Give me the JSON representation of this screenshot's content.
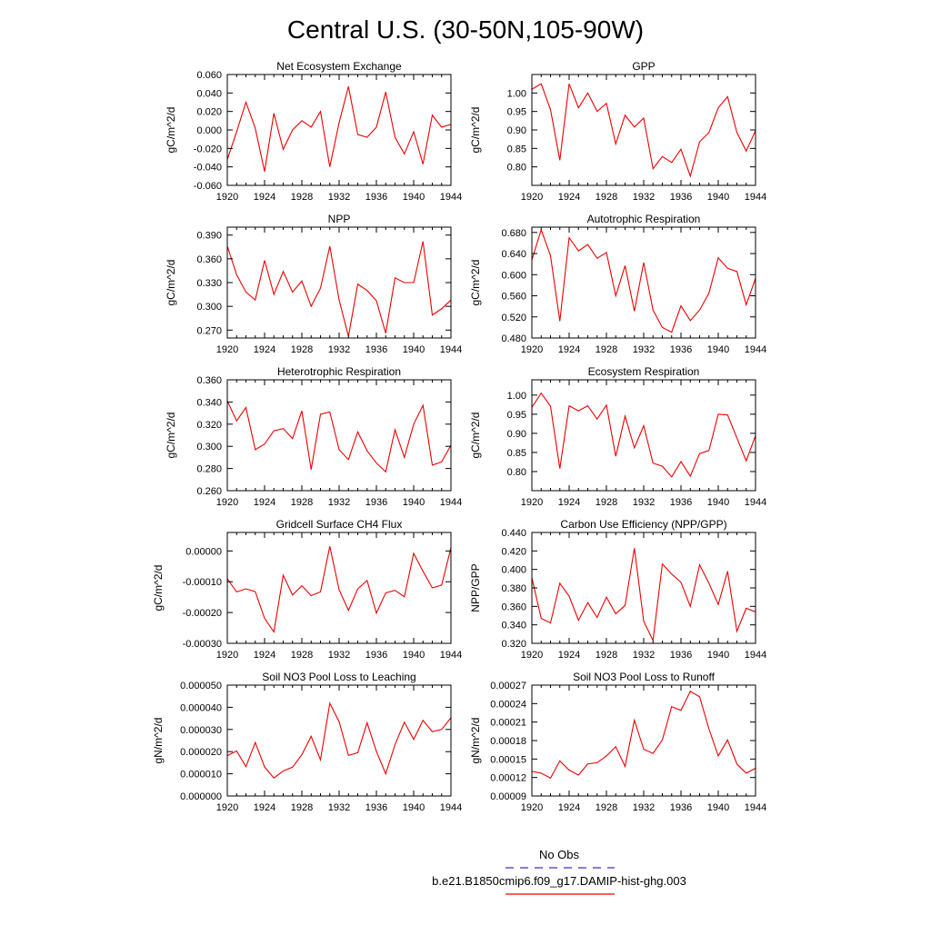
{
  "figure": {
    "title": "Central U.S. (30-50N,105-90W)",
    "legend": [
      {
        "label": "No Obs",
        "color": "#3333cc",
        "style": "dashed"
      },
      {
        "label": "b.e21.B1850cmip6.f09_g17.DAMIP-hist-ghg.003",
        "color": "#ee0000",
        "style": "solid"
      }
    ]
  },
  "chart_data": [
    {
      "type": "line",
      "title": "Net Ecosystem Exchange",
      "xlabel": "",
      "ylabel": "gC/m^2/d",
      "xlim": [
        1920,
        1944
      ],
      "ylim": [
        -0.06,
        0.06
      ],
      "xticks": [
        "1920",
        "1924",
        "1928",
        "1932",
        "1936",
        "1940",
        "1944"
      ],
      "yticks": [
        "-0.060",
        "-0.040",
        "-0.020",
        "0.000",
        "0.020",
        "0.040",
        "0.060"
      ],
      "ytick_values": [
        -0.06,
        -0.04,
        -0.02,
        0,
        0.02,
        0.04,
        0.06
      ],
      "color": "#ee0000",
      "x": [
        1920,
        1921,
        1922,
        1923,
        1924,
        1925,
        1926,
        1927,
        1928,
        1929,
        1930,
        1931,
        1932,
        1933,
        1934,
        1935,
        1936,
        1937,
        1938,
        1939,
        1940,
        1941,
        1942,
        1943,
        1944
      ],
      "values": [
        -0.032,
        -0.002,
        0.03,
        0.002,
        -0.045,
        0.018,
        -0.021,
        0.0,
        0.01,
        0.003,
        0.02,
        -0.04,
        0.008,
        0.047,
        -0.005,
        -0.008,
        0.003,
        0.041,
        -0.008,
        -0.026,
        -0.002,
        -0.037,
        0.016,
        0.003,
        0.006
      ]
    },
    {
      "type": "line",
      "title": "GPP",
      "xlabel": "",
      "ylabel": "gC/m^2/d",
      "xlim": [
        1920,
        1944
      ],
      "ylim": [
        0.75,
        1.05
      ],
      "xticks": [
        "1920",
        "1924",
        "1928",
        "1932",
        "1936",
        "1940",
        "1944"
      ],
      "yticks": [
        "0.80",
        "0.85",
        "0.90",
        "0.95",
        "1.00"
      ],
      "ytick_values": [
        0.8,
        0.85,
        0.9,
        0.95,
        1.0
      ],
      "color": "#ee0000",
      "x": [
        1920,
        1921,
        1922,
        1923,
        1924,
        1925,
        1926,
        1927,
        1928,
        1929,
        1930,
        1931,
        1932,
        1933,
        1934,
        1935,
        1936,
        1937,
        1938,
        1939,
        1940,
        1941,
        1942,
        1943,
        1944
      ],
      "values": [
        1.01,
        1.025,
        0.955,
        0.818,
        1.025,
        0.96,
        1.0,
        0.95,
        0.972,
        0.862,
        0.94,
        0.908,
        0.932,
        0.795,
        0.828,
        0.812,
        0.848,
        0.775,
        0.868,
        0.893,
        0.96,
        0.99,
        0.893,
        0.843,
        0.898
      ]
    },
    {
      "type": "line",
      "title": "NPP",
      "xlabel": "",
      "ylabel": "gC/m^2/d",
      "xlim": [
        1920,
        1944
      ],
      "ylim": [
        0.26,
        0.4
      ],
      "xticks": [
        "1920",
        "1924",
        "1928",
        "1932",
        "1936",
        "1940",
        "1944"
      ],
      "yticks": [
        "0.270",
        "0.300",
        "0.330",
        "0.360",
        "0.390"
      ],
      "ytick_values": [
        0.27,
        0.3,
        0.33,
        0.36,
        0.39
      ],
      "color": "#ee0000",
      "x": [
        1920,
        1921,
        1922,
        1923,
        1924,
        1925,
        1926,
        1927,
        1928,
        1929,
        1930,
        1931,
        1932,
        1933,
        1934,
        1935,
        1936,
        1937,
        1938,
        1939,
        1940,
        1941,
        1942,
        1943,
        1944
      ],
      "values": [
        0.376,
        0.34,
        0.318,
        0.308,
        0.358,
        0.315,
        0.344,
        0.318,
        0.332,
        0.3,
        0.323,
        0.376,
        0.308,
        0.262,
        0.328,
        0.32,
        0.307,
        0.266,
        0.336,
        0.33,
        0.33,
        0.382,
        0.289,
        0.297,
        0.308
      ]
    },
    {
      "type": "line",
      "title": "Autotrophic Respiration",
      "xlabel": "",
      "ylabel": "gC/m^2/d",
      "xlim": [
        1920,
        1944
      ],
      "ylim": [
        0.48,
        0.69
      ],
      "xticks": [
        "1920",
        "1924",
        "1928",
        "1932",
        "1936",
        "1940",
        "1944"
      ],
      "yticks": [
        "0.480",
        "0.520",
        "0.560",
        "0.600",
        "0.640",
        "0.680"
      ],
      "ytick_values": [
        0.48,
        0.52,
        0.56,
        0.6,
        0.64,
        0.68
      ],
      "color": "#ee0000",
      "x": [
        1920,
        1921,
        1922,
        1923,
        1924,
        1925,
        1926,
        1927,
        1928,
        1929,
        1930,
        1931,
        1932,
        1933,
        1934,
        1935,
        1936,
        1937,
        1938,
        1939,
        1940,
        1941,
        1942,
        1943,
        1944
      ],
      "values": [
        0.628,
        0.685,
        0.636,
        0.512,
        0.67,
        0.645,
        0.657,
        0.631,
        0.642,
        0.56,
        0.617,
        0.531,
        0.623,
        0.533,
        0.5,
        0.491,
        0.541,
        0.513,
        0.533,
        0.565,
        0.632,
        0.612,
        0.606,
        0.543,
        0.593
      ]
    },
    {
      "type": "line",
      "title": "Heterotrophic Respiration",
      "xlabel": "",
      "ylabel": "gC/m^2/d",
      "xlim": [
        1920,
        1944
      ],
      "ylim": [
        0.26,
        0.36
      ],
      "xticks": [
        "1920",
        "1924",
        "1928",
        "1932",
        "1936",
        "1940",
        "1944"
      ],
      "yticks": [
        "0.260",
        "0.280",
        "0.300",
        "0.320",
        "0.340",
        "0.360"
      ],
      "ytick_values": [
        0.26,
        0.28,
        0.3,
        0.32,
        0.34,
        0.36
      ],
      "color": "#ee0000",
      "x": [
        1920,
        1921,
        1922,
        1923,
        1924,
        1925,
        1926,
        1927,
        1928,
        1929,
        1930,
        1931,
        1932,
        1933,
        1934,
        1935,
        1936,
        1937,
        1938,
        1939,
        1940,
        1941,
        1942,
        1943,
        1944
      ],
      "values": [
        0.341,
        0.323,
        0.335,
        0.297,
        0.302,
        0.314,
        0.316,
        0.307,
        0.332,
        0.279,
        0.329,
        0.331,
        0.297,
        0.288,
        0.313,
        0.296,
        0.285,
        0.277,
        0.315,
        0.29,
        0.32,
        0.337,
        0.283,
        0.286,
        0.301
      ]
    },
    {
      "type": "line",
      "title": "Ecosystem Respiration",
      "xlabel": "",
      "ylabel": "gC/m^2/d",
      "xlim": [
        1920,
        1944
      ],
      "ylim": [
        0.75,
        1.04
      ],
      "xticks": [
        "1920",
        "1924",
        "1928",
        "1932",
        "1936",
        "1940",
        "1944"
      ],
      "yticks": [
        "0.80",
        "0.85",
        "0.90",
        "0.95",
        "1.00"
      ],
      "ytick_values": [
        0.8,
        0.85,
        0.9,
        0.95,
        1.0
      ],
      "color": "#ee0000",
      "x": [
        1920,
        1921,
        1922,
        1923,
        1924,
        1925,
        1926,
        1927,
        1928,
        1929,
        1930,
        1931,
        1932,
        1933,
        1934,
        1935,
        1936,
        1937,
        1938,
        1939,
        1940,
        1941,
        1942,
        1943,
        1944
      ],
      "values": [
        0.968,
        1.005,
        0.971,
        0.808,
        0.972,
        0.959,
        0.972,
        0.937,
        0.974,
        0.84,
        0.945,
        0.862,
        0.92,
        0.822,
        0.814,
        0.786,
        0.826,
        0.788,
        0.847,
        0.855,
        0.95,
        0.948,
        0.888,
        0.828,
        0.894
      ]
    },
    {
      "type": "line",
      "title": "Gridcell Surface CH4 Flux",
      "xlabel": "",
      "ylabel": "gC/m^2/d",
      "xlim": [
        1920,
        1944
      ],
      "ylim": [
        -0.0003,
        6e-05
      ],
      "xticks": [
        "1920",
        "1924",
        "1928",
        "1932",
        "1936",
        "1940",
        "1944"
      ],
      "yticks": [
        "-0.00030",
        "-0.00020",
        "-0.00010",
        "0.00000"
      ],
      "ytick_values": [
        -0.0003,
        -0.0002,
        -0.0001,
        0
      ],
      "color": "#ee0000",
      "x": [
        1920,
        1921,
        1922,
        1923,
        1924,
        1925,
        1926,
        1927,
        1928,
        1929,
        1930,
        1931,
        1932,
        1933,
        1934,
        1935,
        1936,
        1937,
        1938,
        1939,
        1940,
        1941,
        1942,
        1943,
        1944
      ],
      "values": [
        -9e-05,
        -0.000133,
        -0.000123,
        -0.000132,
        -0.000219,
        -0.000263,
        -7.9e-05,
        -0.000143,
        -0.000113,
        -0.000145,
        -0.000133,
        1.5e-05,
        -0.000126,
        -0.000193,
        -0.000123,
        -9.6e-05,
        -0.000202,
        -0.000136,
        -0.000128,
        -0.000149,
        -8e-06,
        -6.6e-05,
        -0.00012,
        -0.000111,
        1e-05
      ]
    },
    {
      "type": "line",
      "title": "Carbon Use Efficiency (NPP/GPP)",
      "xlabel": "",
      "ylabel": "NPP/GPP",
      "xlim": [
        1920,
        1944
      ],
      "ylim": [
        0.32,
        0.44
      ],
      "xticks": [
        "1920",
        "1924",
        "1928",
        "1932",
        "1936",
        "1940",
        "1944"
      ],
      "yticks": [
        "0.320",
        "0.340",
        "0.360",
        "0.380",
        "0.400",
        "0.420",
        "0.440"
      ],
      "ytick_values": [
        0.32,
        0.34,
        0.36,
        0.38,
        0.4,
        0.42,
        0.44
      ],
      "color": "#ee0000",
      "x": [
        1920,
        1921,
        1922,
        1923,
        1924,
        1925,
        1926,
        1927,
        1928,
        1929,
        1930,
        1931,
        1932,
        1933,
        1934,
        1935,
        1936,
        1937,
        1938,
        1939,
        1940,
        1941,
        1942,
        1943,
        1944
      ],
      "values": [
        0.391,
        0.347,
        0.342,
        0.385,
        0.371,
        0.345,
        0.364,
        0.348,
        0.37,
        0.352,
        0.361,
        0.423,
        0.344,
        0.323,
        0.406,
        0.395,
        0.386,
        0.36,
        0.405,
        0.385,
        0.362,
        0.398,
        0.333,
        0.358,
        0.354
      ]
    },
    {
      "type": "line",
      "title": "Soil NO3 Pool Loss to Leaching",
      "xlabel": "",
      "ylabel": "gN/m^2/d",
      "xlim": [
        1920,
        1944
      ],
      "ylim": [
        0,
        5e-05
      ],
      "xticks": [
        "1920",
        "1924",
        "1928",
        "1932",
        "1936",
        "1940",
        "1944"
      ],
      "yticks": [
        "0.000000",
        "0.000010",
        "0.000020",
        "0.000030",
        "0.000040",
        "0.000050"
      ],
      "ytick_values": [
        0,
        1e-05,
        2e-05,
        3e-05,
        4e-05,
        5e-05
      ],
      "color": "#ee0000",
      "x": [
        1920,
        1921,
        1922,
        1923,
        1924,
        1925,
        1926,
        1927,
        1928,
        1929,
        1930,
        1931,
        1932,
        1933,
        1934,
        1935,
        1936,
        1937,
        1938,
        1939,
        1940,
        1941,
        1942,
        1943,
        1944
      ],
      "values": [
        1.82e-05,
        2.03e-05,
        1.32e-05,
        2.41e-05,
        1.31e-05,
        8.1e-06,
        1.13e-05,
        1.3e-05,
        1.86e-05,
        2.69e-05,
        1.63e-05,
        4.18e-05,
        3.35e-05,
        1.83e-05,
        1.95e-05,
        3.3e-05,
        2.01e-05,
        1e-05,
        2.32e-05,
        3.33e-05,
        2.55e-05,
        3.41e-05,
        2.9e-05,
        3e-05,
        3.53e-05
      ]
    },
    {
      "type": "line",
      "title": "Soil NO3 Pool Loss to Runoff",
      "xlabel": "",
      "ylabel": "gN/m^2/d",
      "xlim": [
        1920,
        1944
      ],
      "ylim": [
        9e-05,
        0.00027
      ],
      "xticks": [
        "1920",
        "1924",
        "1928",
        "1932",
        "1936",
        "1940",
        "1944"
      ],
      "yticks": [
        "0.00009",
        "0.00012",
        "0.00015",
        "0.00018",
        "0.00021",
        "0.00024",
        "0.00027"
      ],
      "ytick_values": [
        9e-05,
        0.00012,
        0.00015,
        0.00018,
        0.00021,
        0.00024,
        0.00027
      ],
      "color": "#ee0000",
      "x": [
        1920,
        1921,
        1922,
        1923,
        1924,
        1925,
        1926,
        1927,
        1928,
        1929,
        1930,
        1931,
        1932,
        1933,
        1934,
        1935,
        1936,
        1937,
        1938,
        1939,
        1940,
        1941,
        1942,
        1943,
        1944
      ],
      "values": [
        0.00013,
        0.000127,
        0.000119,
        0.000147,
        0.000132,
        0.000124,
        0.000142,
        0.000144,
        0.000155,
        0.00017,
        0.000138,
        0.000213,
        0.000166,
        0.000159,
        0.000181,
        0.000235,
        0.000229,
        0.00026,
        0.000251,
        0.000199,
        0.000155,
        0.000181,
        0.000142,
        0.000127,
        0.000135
      ]
    }
  ]
}
